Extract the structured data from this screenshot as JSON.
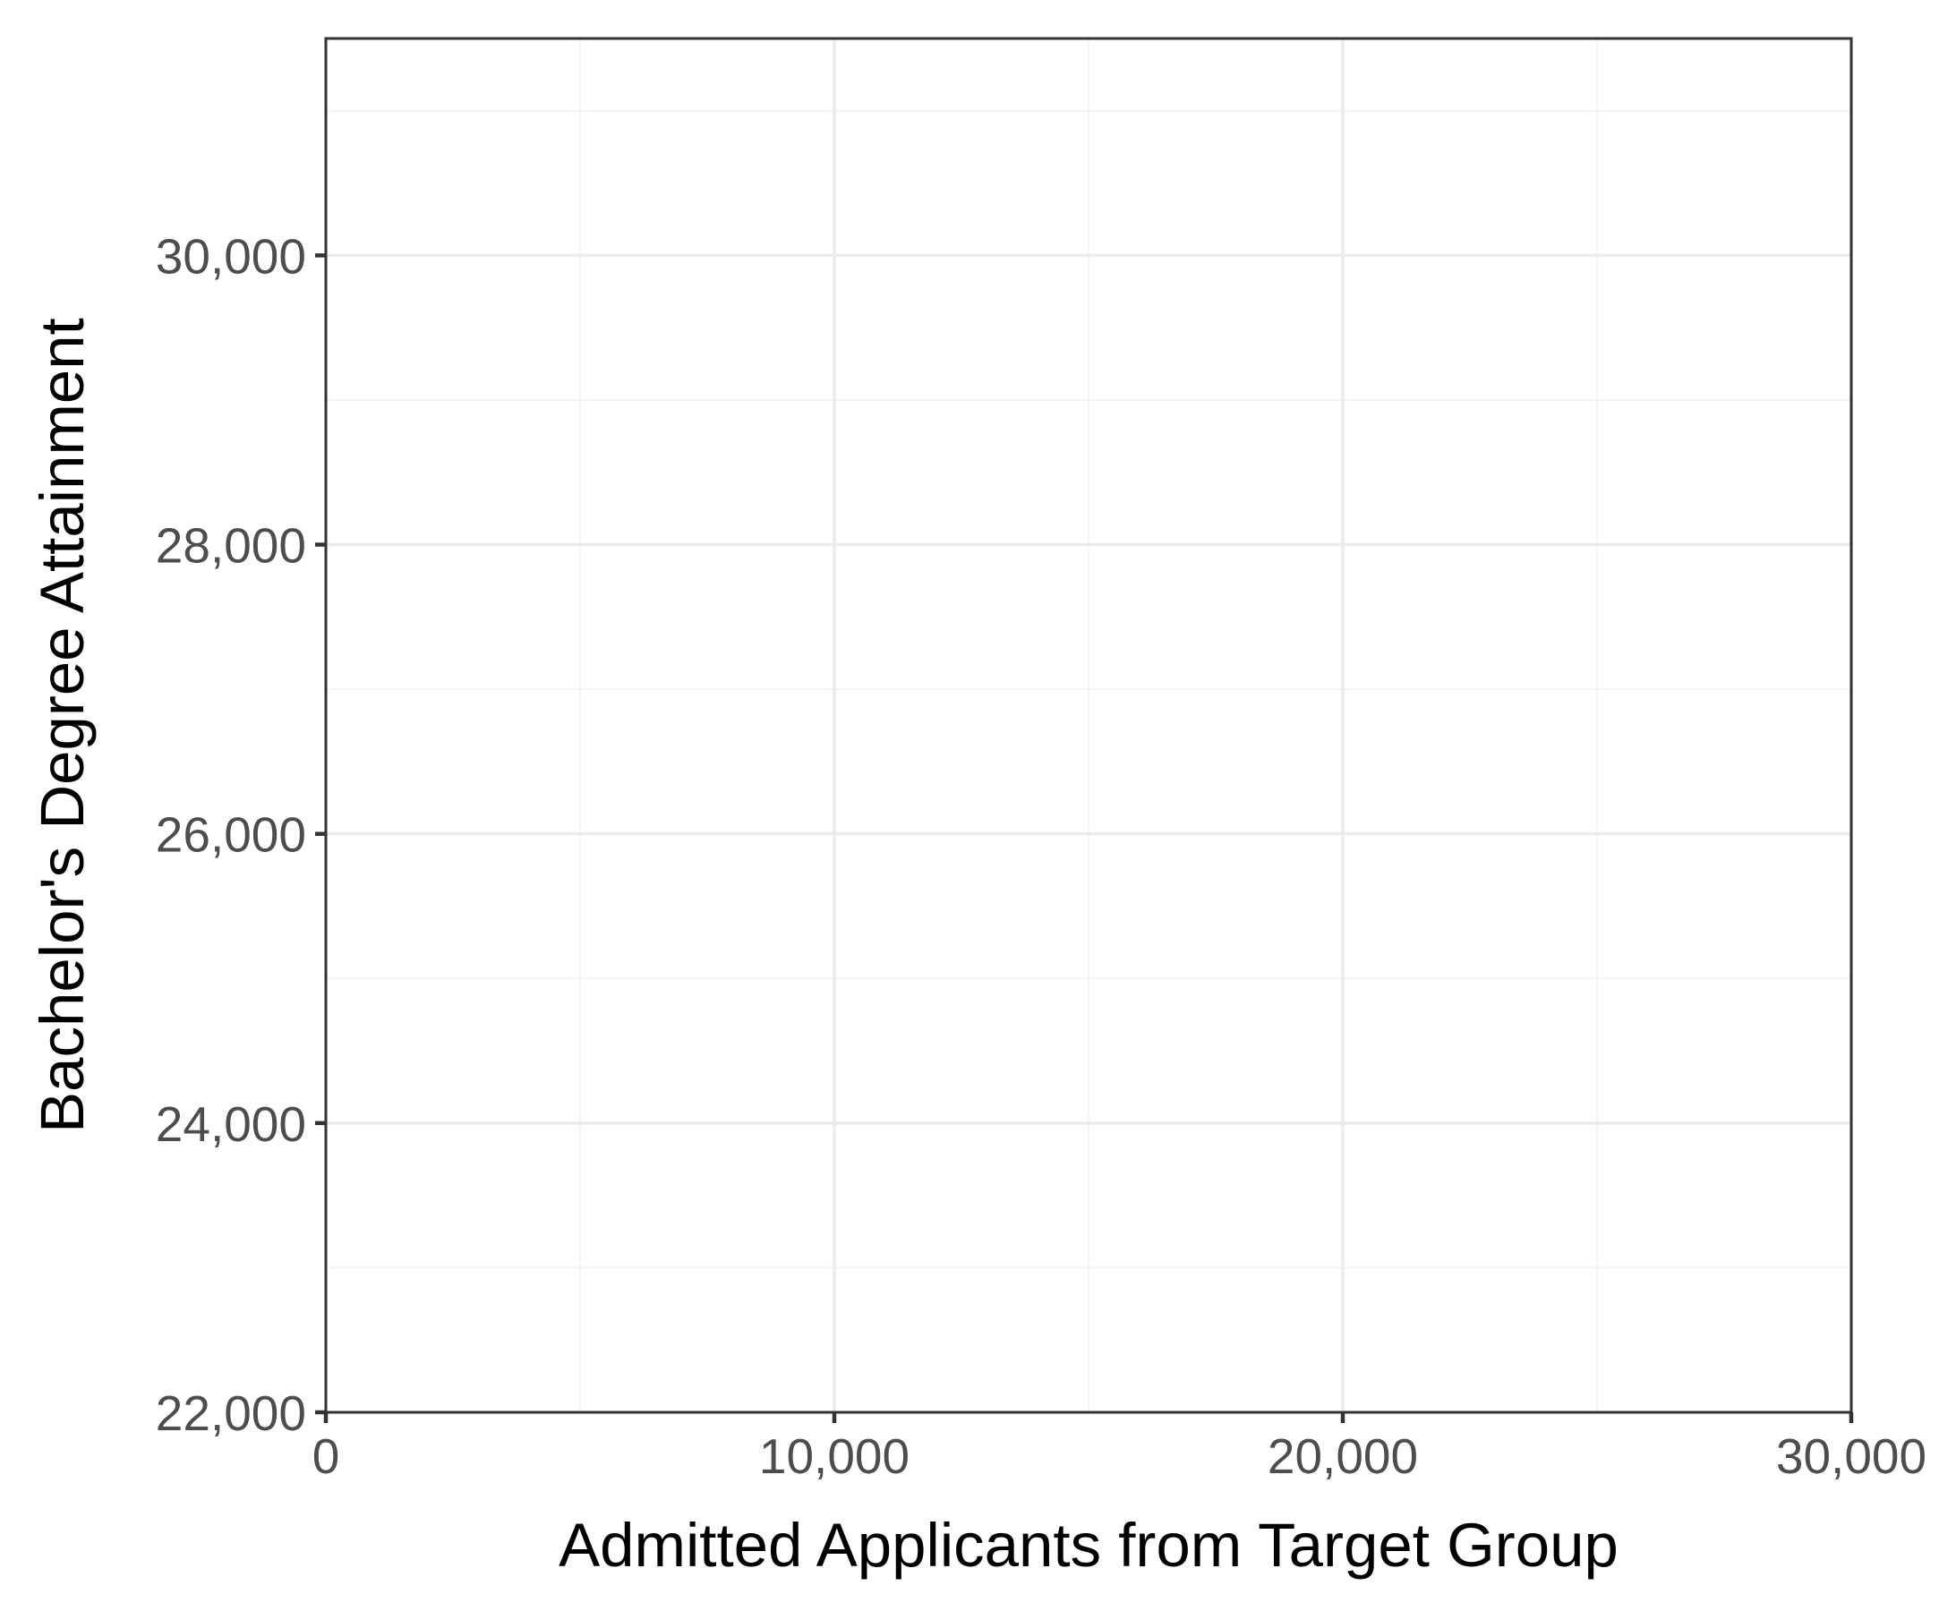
{
  "chart_data": {
    "type": "scatter",
    "title": "",
    "xlabel": "Admitted Applicants from Target Group",
    "ylabel": "Bachelor's Degree Attainment",
    "xlim": [
      0,
      30000
    ],
    "ylim": [
      22000,
      31500
    ],
    "x_ticks": [
      0,
      10000,
      20000,
      30000
    ],
    "x_tick_labels": [
      "0",
      "10,000",
      "20,000",
      "30,000"
    ],
    "y_ticks": [
      22000,
      24000,
      26000,
      28000,
      30000
    ],
    "y_tick_labels": [
      "22,000",
      "24,000",
      "26,000",
      "28,000",
      "30,000"
    ],
    "x_minor_ticks": [
      5000,
      15000,
      25000
    ],
    "y_minor_ticks": [
      23000,
      25000,
      27000,
      29000,
      31000
    ],
    "grid": true,
    "series": [
      {
        "x": [],
        "y": []
      }
    ],
    "colors": {
      "panel_border": "#333333",
      "grid_major": "#ebebeb",
      "grid_minor": "#f4f4f4",
      "tick_label": "#4d4d4d",
      "axis_title": "#000000"
    }
  }
}
